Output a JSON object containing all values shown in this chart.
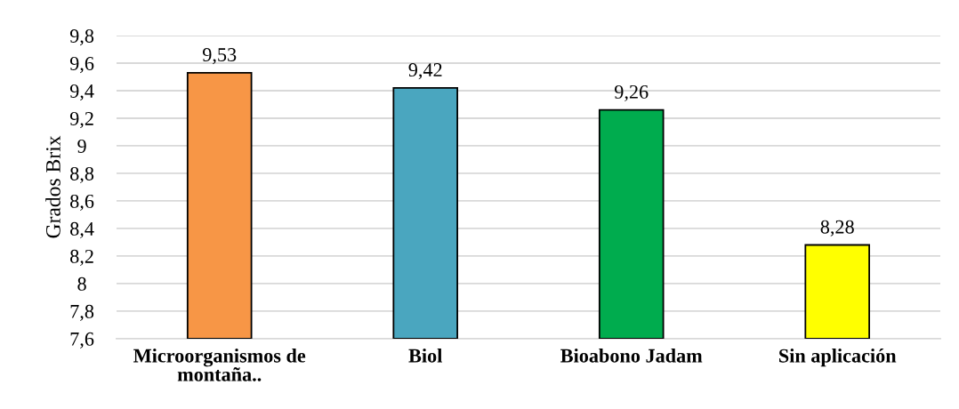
{
  "chart_data": {
    "type": "bar",
    "ylabel": "Grados Brix",
    "categories": [
      "Microorganismos de\nmontaña..",
      "Biol",
      "Bioabono Jadam",
      "Sin aplicación"
    ],
    "values": [
      9.53,
      9.42,
      9.26,
      8.28
    ],
    "colors": [
      "#f79646",
      "#4aa6bf",
      "#00ac4e",
      "#ffff00"
    ],
    "value_labels": [
      "9,53",
      "9,42",
      "9,26",
      "8,28"
    ],
    "ylim": [
      7.6,
      9.8
    ],
    "yticks": [
      {
        "value": 7.6,
        "label": "7,6"
      },
      {
        "value": 7.8,
        "label": "7,8"
      },
      8,
      {
        "value": 8.2,
        "label": "8,2"
      },
      {
        "value": 8.4,
        "label": "8,4"
      },
      {
        "value": 8.6,
        "label": "8,6"
      },
      {
        "value": 8.8,
        "label": "8,8"
      },
      9,
      {
        "value": 9.2,
        "label": "9,2"
      },
      {
        "value": 9.4,
        "label": "9,4"
      },
      {
        "value": 9.6,
        "label": "9,6"
      },
      {
        "value": 9.8,
        "label": "9,8"
      }
    ],
    "grid": "y",
    "legend": false
  }
}
